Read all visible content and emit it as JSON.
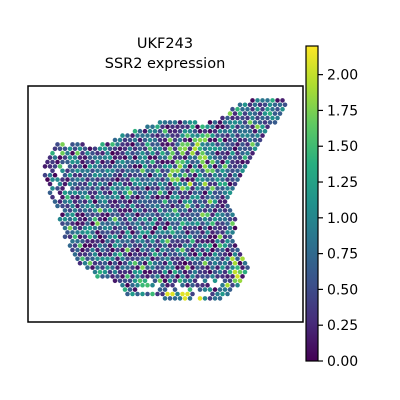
{
  "chart_data": {
    "type": "scatter",
    "subtype": "spatial-transcriptomics-hex-spots",
    "title": "UKF243",
    "subtitle": "SSR2 expression",
    "xlabel": "",
    "ylabel": "",
    "axes_ticks_visible": false,
    "grid": false,
    "colormap": "viridis",
    "colorbar": {
      "min": 0.0,
      "max": 2.2,
      "ticks": [
        0.0,
        0.25,
        0.5,
        0.75,
        1.0,
        1.25,
        1.5,
        1.75,
        2.0
      ],
      "tick_labels": [
        "0.00",
        "0.25",
        "0.50",
        "0.75",
        "1.00",
        "1.25",
        "1.50",
        "1.75",
        "2.00"
      ],
      "placement": "right"
    },
    "value_distribution": {
      "typical_range": [
        0.0,
        1.6
      ],
      "bulk_of_spots": [
        0.3,
        1.2
      ],
      "hotspots_upper_center": 1.8,
      "hotspots_bottom_edge": 2.1
    }
  }
}
